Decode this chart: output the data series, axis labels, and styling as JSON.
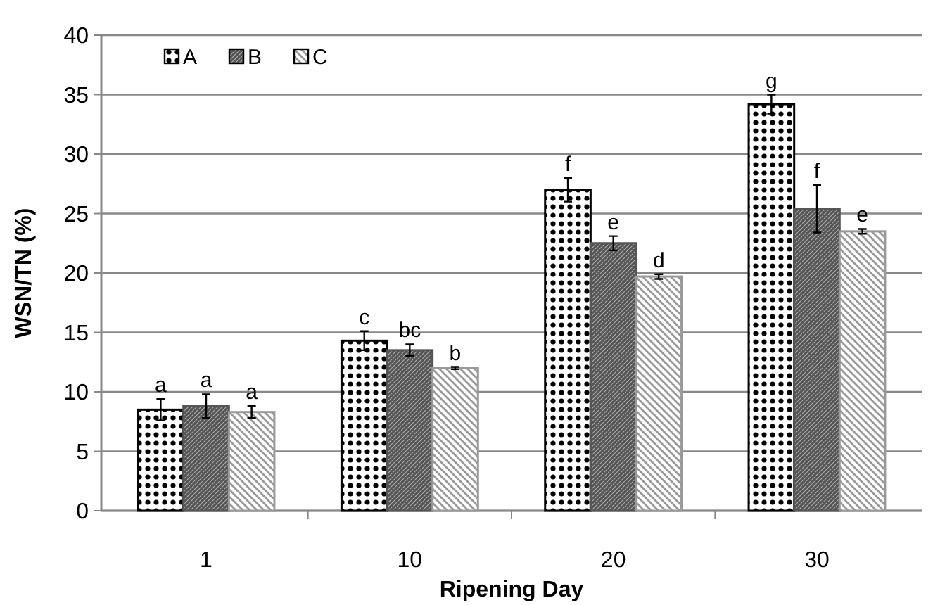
{
  "chart_data": {
    "type": "bar",
    "xlabel": "Ripening Day",
    "ylabel": "WSN/TN (%)",
    "categories": [
      "1",
      "10",
      "20",
      "30"
    ],
    "series": [
      {
        "name": "A",
        "color": "#000000",
        "values": [
          8.5,
          14.3,
          27.0,
          34.2
        ],
        "errors": [
          0.9,
          0.8,
          1.0,
          0.8
        ],
        "value_labels": [
          "a",
          "c",
          "f",
          "g"
        ]
      },
      {
        "name": "B",
        "color": "#555555",
        "values": [
          8.8,
          13.5,
          22.5,
          25.4
        ],
        "errors": [
          1.0,
          0.5,
          0.6,
          2.0
        ],
        "value_labels": [
          "a",
          "bc",
          "e",
          "f"
        ]
      },
      {
        "name": "C",
        "color": "#999999",
        "values": [
          8.3,
          12.0,
          19.7,
          23.5
        ],
        "errors": [
          0.5,
          0.1,
          0.2,
          0.2
        ],
        "value_labels": [
          "a",
          "b",
          "d",
          "e"
        ]
      }
    ],
    "ylim": [
      0,
      40
    ],
    "yticks": [
      0,
      5,
      10,
      15,
      20,
      25,
      30,
      35,
      40
    ],
    "grid": "y",
    "legend": "top left"
  }
}
